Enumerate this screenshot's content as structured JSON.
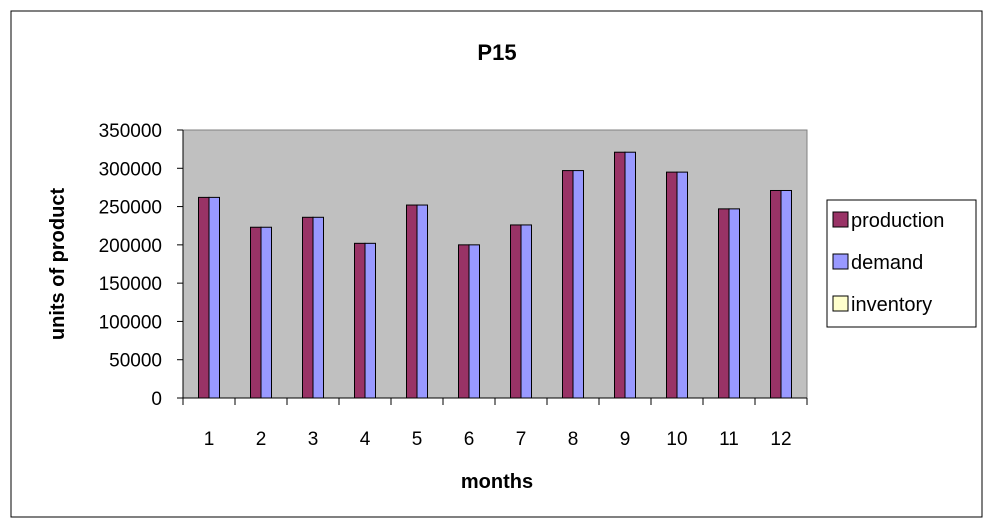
{
  "chart_data": {
    "type": "bar",
    "title": "P15",
    "xlabel": "months",
    "ylabel": "units of product",
    "categories": [
      "1",
      "2",
      "3",
      "4",
      "5",
      "6",
      "7",
      "8",
      "9",
      "10",
      "11",
      "12"
    ],
    "ylim": [
      0,
      350000
    ],
    "yticks": [
      "0",
      "50000",
      "100000",
      "150000",
      "200000",
      "250000",
      "300000",
      "350000"
    ],
    "grid": false,
    "legend_position": "right",
    "series": [
      {
        "name": "production",
        "color": "#993366",
        "values": [
          262000,
          223000,
          236000,
          202000,
          252000,
          200000,
          226000,
          297000,
          321000,
          295000,
          247000,
          271000
        ]
      },
      {
        "name": "demand",
        "color": "#9999ff",
        "values": [
          262000,
          223000,
          236000,
          202000,
          252000,
          200000,
          226000,
          297000,
          321000,
          295000,
          247000,
          271000
        ]
      },
      {
        "name": "inventory",
        "color": "#ffffcc",
        "values": [
          0,
          0,
          0,
          0,
          0,
          0,
          0,
          0,
          0,
          0,
          0,
          0
        ]
      }
    ],
    "colors": {
      "plot_background": "#c0c0c0",
      "chart_background": "#ffffff",
      "axis": "#000000"
    }
  }
}
